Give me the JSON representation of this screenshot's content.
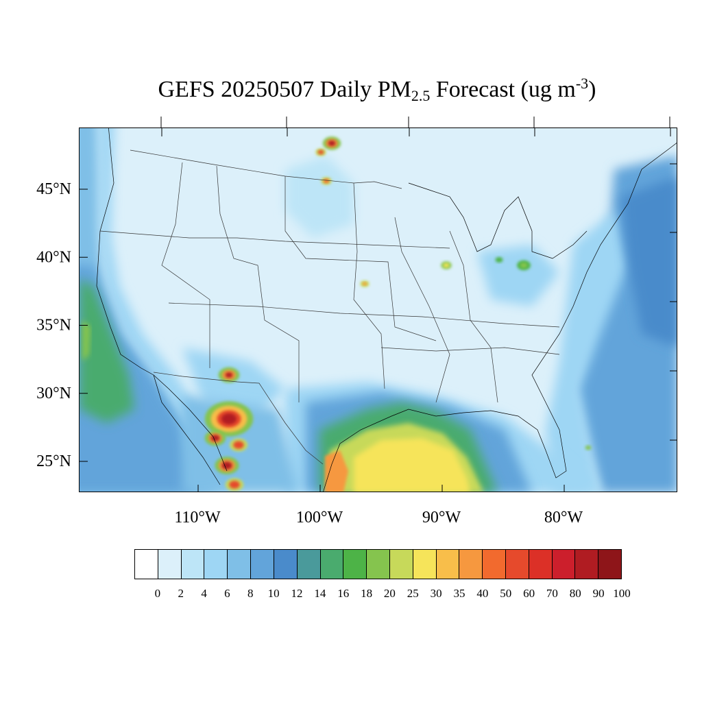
{
  "title": {
    "main": "GEFS 20250507 Daily PM",
    "sub": "2.5",
    "mid": " Forecast (ug m",
    "sup": "-3",
    "end": ")"
  },
  "map": {
    "lat_labels": [
      "45°N",
      "40°N",
      "35°N",
      "30°N",
      "25°N"
    ],
    "lat_values": [
      45,
      40,
      35,
      30,
      25
    ],
    "lon_labels": [
      "110°W",
      "100°W",
      "90°W",
      "80°W"
    ],
    "lon_values": [
      -110,
      -100,
      -90,
      -80
    ],
    "background_color": "#dcf0fa",
    "land_base_color": "#dcf0fa",
    "ocean_color": "#9fd3f3",
    "deep_ocean_color": "#6aaad9",
    "border_color": "#000000"
  },
  "colorbar": {
    "labels": [
      "0",
      "2",
      "4",
      "6",
      "8",
      "10",
      "12",
      "14",
      "16",
      "18",
      "20",
      "25",
      "30",
      "35",
      "40",
      "50",
      "60",
      "70",
      "80",
      "90",
      "100"
    ],
    "colors": [
      "#ffffff",
      "#dcf0fa",
      "#bde5f7",
      "#9ed6f4",
      "#7fbfe7",
      "#62a4da",
      "#4a8bcb",
      "#4a9a9b",
      "#4aab6e",
      "#4db347",
      "#85c44e",
      "#c7d95a",
      "#f6e45a",
      "#f8be4a",
      "#f6983f",
      "#f26a2e",
      "#e64a2c",
      "#dc3027",
      "#cc1f2c",
      "#b01c22",
      "#8e1519"
    ]
  }
}
